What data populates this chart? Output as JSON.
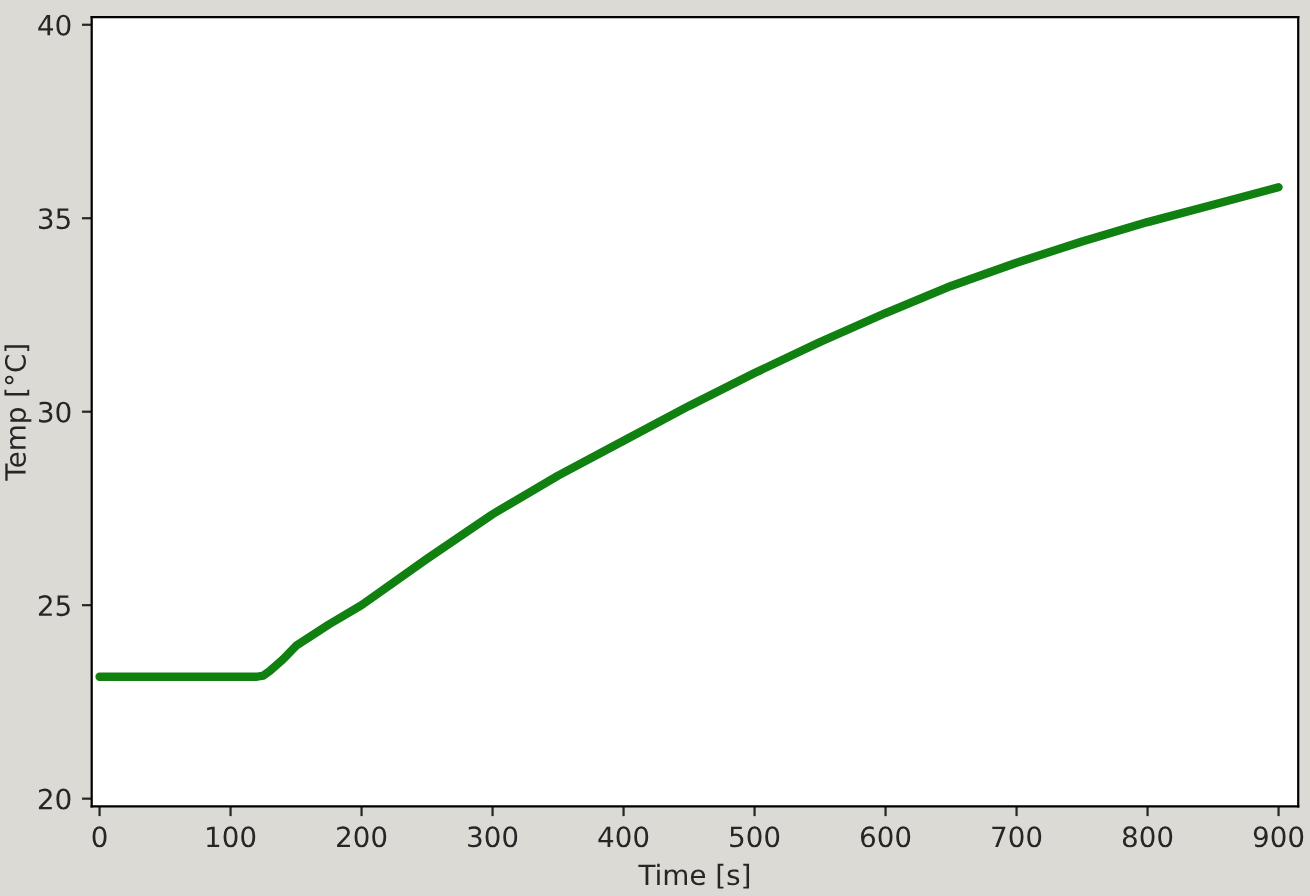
{
  "chart_data": {
    "type": "line",
    "xlabel": "Time [s]",
    "ylabel": "Temp [°C]",
    "xlim": [
      -6,
      915
    ],
    "ylim": [
      19.8,
      40.2
    ],
    "xticks": [
      0,
      100,
      200,
      300,
      400,
      500,
      600,
      700,
      800,
      900
    ],
    "yticks": [
      20,
      25,
      30,
      35,
      40
    ],
    "grid": false,
    "series": [
      {
        "color": "#108010",
        "x": [
          0,
          50,
          100,
          120,
          125,
          130,
          140,
          150,
          175,
          200,
          250,
          300,
          350,
          400,
          450,
          500,
          550,
          600,
          650,
          700,
          750,
          800,
          850,
          900
        ],
        "values": [
          23.15,
          23.15,
          23.15,
          23.15,
          23.18,
          23.3,
          23.6,
          23.95,
          24.5,
          25.0,
          26.2,
          27.35,
          28.35,
          29.25,
          30.15,
          31.0,
          31.8,
          32.55,
          33.25,
          33.85,
          34.4,
          34.9,
          35.35,
          35.8
        ]
      }
    ]
  }
}
